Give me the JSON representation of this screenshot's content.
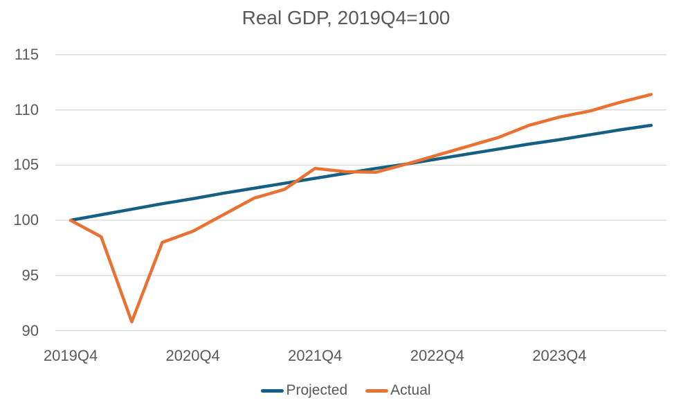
{
  "chart": {
    "title": "Real GDP, 2019Q4=100"
  },
  "colors": {
    "projected_line": "#156082",
    "actual_line": "#E97132",
    "gridline": "#D9D9D9",
    "text": "#595959",
    "background": "#FFFFFF"
  },
  "chart_data": {
    "type": "line",
    "title": "Real GDP, 2019Q4=100",
    "xlabel": "",
    "ylabel": "",
    "ylim": [
      90,
      115
    ],
    "y_ticks": [
      90,
      95,
      100,
      105,
      110,
      115
    ],
    "grid": "horizontal",
    "legend_position": "bottom",
    "categories": [
      "2019Q4",
      "2020Q1",
      "2020Q2",
      "2020Q3",
      "2020Q4",
      "2021Q1",
      "2021Q2",
      "2021Q3",
      "2021Q4",
      "2022Q1",
      "2022Q2",
      "2022Q3",
      "2022Q4",
      "2023Q1",
      "2023Q2",
      "2023Q3",
      "2023Q4",
      "2024Q1",
      "2024Q2",
      "2024Q3"
    ],
    "x_ticks": [
      {
        "index": 0,
        "label": "2019Q4"
      },
      {
        "index": 4,
        "label": "2020Q4"
      },
      {
        "index": 8,
        "label": "2021Q4"
      },
      {
        "index": 12,
        "label": "2022Q4"
      },
      {
        "index": 16,
        "label": "2023Q4"
      }
    ],
    "series": [
      {
        "name": "Projected",
        "color": "#156082",
        "values": [
          100,
          100.5,
          101,
          101.5,
          101.95,
          102.45,
          102.9,
          103.35,
          103.8,
          104.25,
          104.7,
          105.1,
          105.55,
          106,
          106.45,
          106.9,
          107.3,
          107.75,
          108.2,
          108.6
        ]
      },
      {
        "name": "Actual",
        "color": "#E97132",
        "values": [
          100,
          98.5,
          90.8,
          98,
          99,
          100.5,
          102,
          102.8,
          104.7,
          104.4,
          104.35,
          105.1,
          105.9,
          106.7,
          107.5,
          108.6,
          109.35,
          109.9,
          110.7,
          111.4
        ]
      }
    ]
  }
}
